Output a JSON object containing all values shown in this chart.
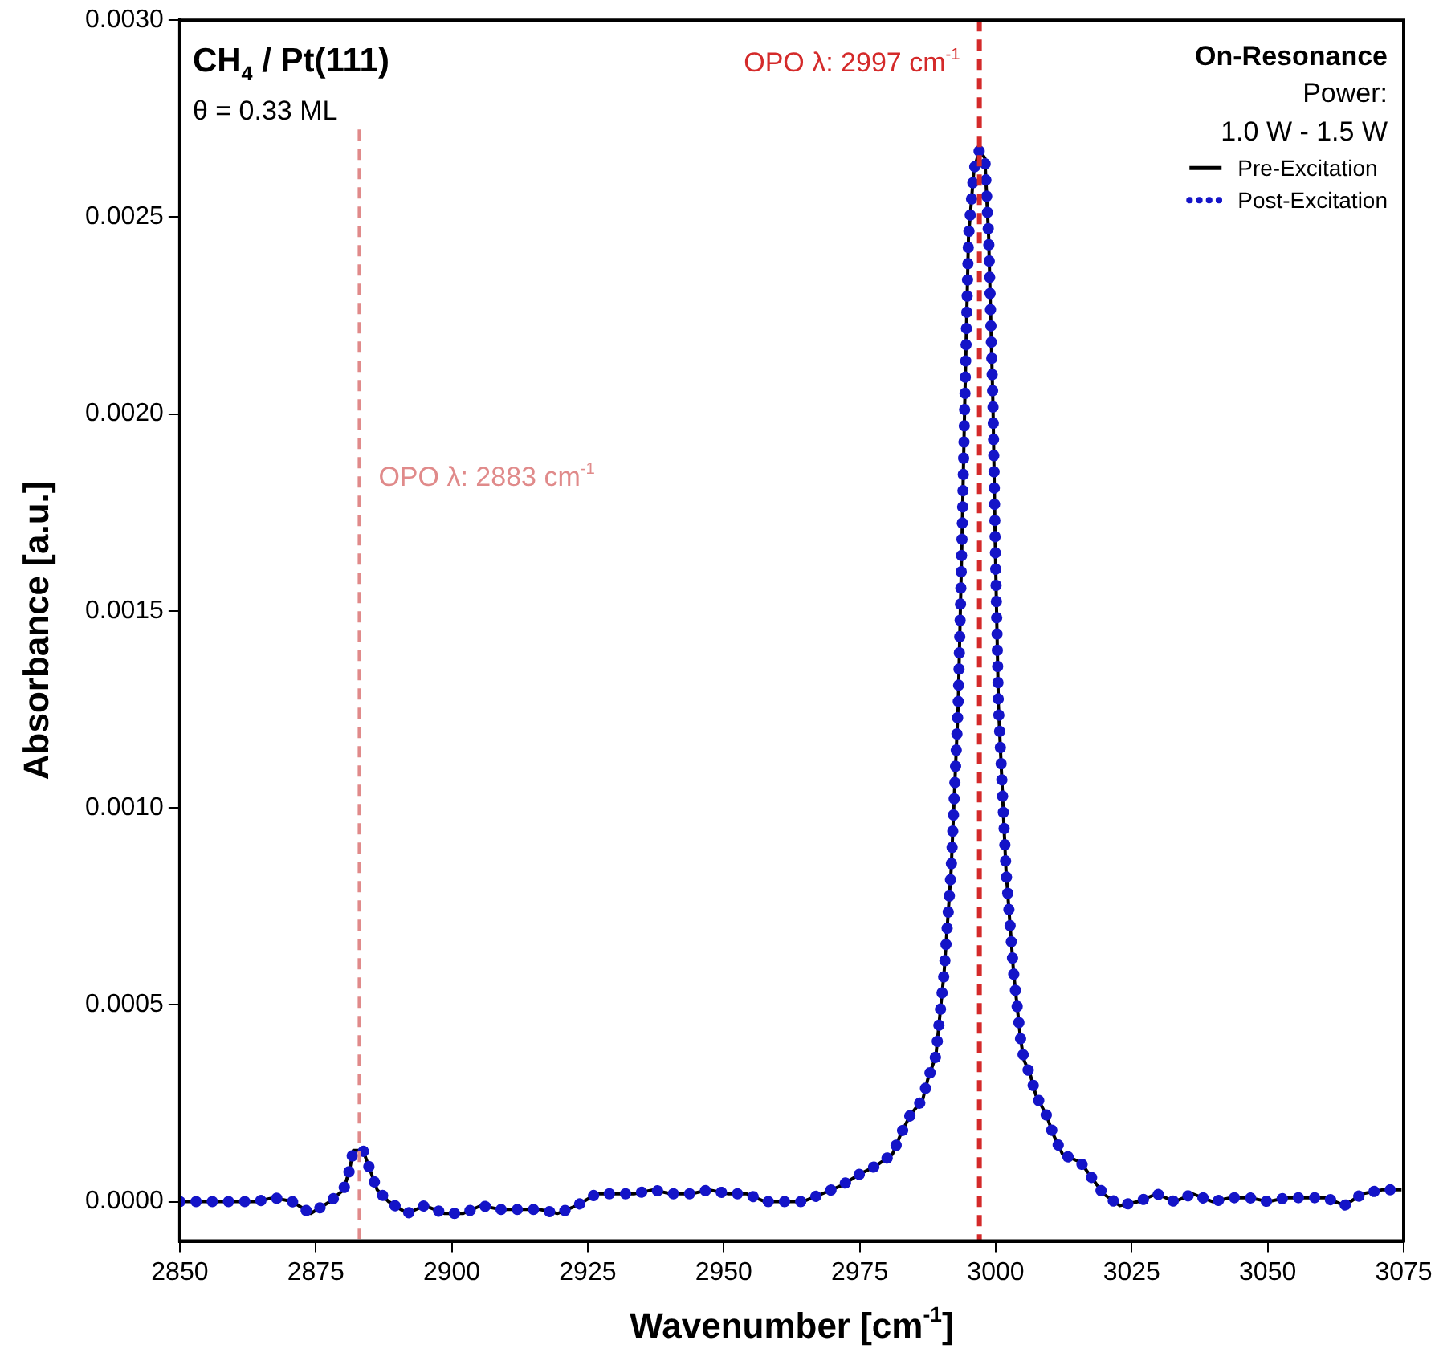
{
  "chart_data": {
    "type": "line",
    "title": "CH$_{4}$ / Pt(111)",
    "xlabel": "Wavenumber [cm$^{-1}$]",
    "ylabel": "Absorbance [a.u.]",
    "legend_title": "On-Resonance",
    "annotations": [
      "θ = 0.33 ML",
      "Power:",
      "1.0 W - 1.5 W"
    ],
    "x": [
      2850,
      2853.4,
      2857,
      2860.4,
      2863.9,
      2867.3,
      2870.7,
      2874.1,
      2877.6,
      2880.1,
      2881.2,
      2881.9,
      2883.7,
      2885,
      2886.3,
      2888.4,
      2891.8,
      2895,
      2898.7,
      2902.1,
      2905.4,
      2909,
      2912.6,
      2916.2,
      2919.5,
      2923,
      2926.6,
      2930,
      2933.5,
      2937,
      2940.3,
      2944,
      2947.3,
      2950.9,
      2954.2,
      2957.6,
      2961.1,
      2964.5,
      2968.1,
      2971.5,
      2975,
      2977.9,
      2981,
      2982.5,
      2984.3,
      2986.6,
      2987.5,
      2989,
      2990.5,
      2991.8,
      2993.1,
      2993.8,
      2994.3,
      2995,
      2996,
      2997,
      2998,
      2998.7,
      2999.5,
      2999.9,
      3000.5,
      3001.9,
      3003.3,
      3004.6,
      3005.2,
      3006.4,
      3007.4,
      3009.3,
      3010.6,
      3012.3,
      3015.6,
      3017.7,
      3019.8,
      3022.8,
      3026.2,
      3029.6,
      3032.9,
      3036.2,
      3039.9,
      3043.2,
      3046.6,
      3050.1,
      3053.5,
      3057,
      3060.7,
      3064.1,
      3067.4,
      3071,
      3074.6
    ],
    "series": [
      {
        "name": "Pre-Excitation",
        "color": "#000000",
        "line_style": "solid",
        "values": [
          0,
          0,
          0,
          0,
          0,
          1e-05,
          0,
          -3e-05,
          0,
          3e-05,
          8e-05,
          0.00013,
          0.00013,
          8e-05,
          3e-05,
          0,
          -3e-05,
          -1e-05,
          -3e-05,
          -3e-05,
          -1e-05,
          -2e-05,
          -2e-05,
          -2e-05,
          -3e-05,
          -1e-05,
          2e-05,
          2e-05,
          2e-05,
          3e-05,
          2e-05,
          2e-05,
          3e-05,
          2e-05,
          2e-05,
          0,
          0,
          0,
          2e-05,
          4e-05,
          7e-05,
          9e-05,
          0.00012,
          0.00017,
          0.00022,
          0.00026,
          0.00031,
          0.00037,
          0.00058,
          0.00084,
          0.00126,
          0.00168,
          0.00202,
          0.00245,
          0.00262,
          0.00267,
          0.00265,
          0.00245,
          0.00202,
          0.00168,
          0.00126,
          0.00084,
          0.00058,
          0.00041,
          0.00036,
          0.00032,
          0.00027,
          0.00022,
          0.00017,
          0.00012,
          0.0001,
          6e-05,
          2e-05,
          -1e-05,
          0,
          2e-05,
          0,
          2e-05,
          0,
          1e-05,
          1e-05,
          0,
          1e-05,
          1e-05,
          1e-05,
          -1e-05,
          2e-05,
          3e-05,
          3e-05
        ]
      },
      {
        "name": "Post-Excitation",
        "color": "#1414c8",
        "line_style": "dotted",
        "values": [
          0,
          0,
          0,
          0,
          0,
          1e-05,
          0,
          -3e-05,
          0,
          3e-05,
          8e-05,
          0.00013,
          0.00013,
          8e-05,
          3e-05,
          0,
          -3e-05,
          -1e-05,
          -3e-05,
          -3e-05,
          -1e-05,
          -2e-05,
          -2e-05,
          -2e-05,
          -3e-05,
          -1e-05,
          2e-05,
          2e-05,
          2e-05,
          3e-05,
          2e-05,
          2e-05,
          3e-05,
          2e-05,
          2e-05,
          0,
          0,
          0,
          2e-05,
          4e-05,
          7e-05,
          9e-05,
          0.00012,
          0.00017,
          0.00022,
          0.00026,
          0.00031,
          0.00037,
          0.00058,
          0.00084,
          0.00126,
          0.00168,
          0.00202,
          0.00245,
          0.00262,
          0.00267,
          0.00265,
          0.00245,
          0.00202,
          0.00168,
          0.00126,
          0.00084,
          0.00058,
          0.00041,
          0.00036,
          0.00032,
          0.00027,
          0.00022,
          0.00017,
          0.00012,
          0.0001,
          6e-05,
          2e-05,
          -1e-05,
          0,
          2e-05,
          0,
          2e-05,
          0,
          1e-05,
          1e-05,
          0,
          1e-05,
          1e-05,
          1e-05,
          -1e-05,
          2e-05,
          3e-05,
          3e-05
        ]
      }
    ],
    "xlim": [
      2850,
      3075
    ],
    "xticks": [
      2850,
      2875,
      2900,
      2925,
      2950,
      2975,
      3000,
      3025,
      3050,
      3075
    ],
    "ylim": [
      -0.0001,
      0.003
    ],
    "yticks": [
      {
        "value": 0,
        "label": "0.0000"
      },
      {
        "value": 0.0005,
        "label": "0.0005"
      },
      {
        "value": 0.001,
        "label": "0.0010"
      },
      {
        "value": 0.0015,
        "label": "0.0015"
      },
      {
        "value": 0.002,
        "label": "0.0020"
      },
      {
        "value": 0.0025,
        "label": "0.0025"
      },
      {
        "value": 0.003,
        "label": "0.0030"
      }
    ],
    "ref_lines": [
      {
        "axis": "x",
        "value": 2883,
        "label": "OPO λ: 2883 cm$^{-1}$",
        "color": "#e08a8a",
        "line_style": "dashed"
      },
      {
        "axis": "x",
        "value": 2997,
        "label": "OPO λ: 2997 cm$^{-1}$",
        "color": "#d42a2a",
        "line_style": "dashed"
      }
    ],
    "grid": false,
    "legend": "top right"
  }
}
